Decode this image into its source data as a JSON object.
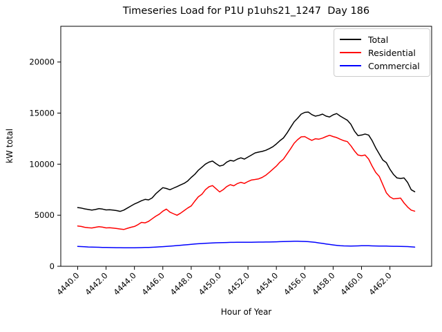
{
  "title": "Timeseries Load for P1U p1uhs21_1247  Day 186",
  "chart_data": {
    "type": "line",
    "title": "Timeseries Load for P1U p1uhs21_1247  Day 186",
    "xlabel": "Hour of Year",
    "ylabel": "kW total",
    "xlim": [
      4438.81,
      4464.94
    ],
    "ylim": [
      0,
      23500
    ],
    "grid": false,
    "legend_position": "upper right",
    "xticks": [
      4440,
      4442,
      4444,
      4446,
      4448,
      4450,
      4452,
      4454,
      4456,
      4458,
      4460,
      4462
    ],
    "xtick_labels": [
      "4440.0",
      "4442.0",
      "4444.0",
      "4446.0",
      "4448.0",
      "4450.0",
      "4452.0",
      "4454.0",
      "4456.0",
      "4458.0",
      "4460.0",
      "4462.0"
    ],
    "yticks": [
      0,
      5000,
      10000,
      15000,
      20000
    ],
    "ytick_labels": [
      "0",
      "5000",
      "10000",
      "15000",
      "20000"
    ],
    "x_start": 4440.0,
    "x_step": 0.25,
    "series": [
      {
        "name": "Total",
        "color": "#000000",
        "values": [
          5750,
          5700,
          5620,
          5560,
          5500,
          5560,
          5650,
          5600,
          5520,
          5540,
          5500,
          5450,
          5380,
          5500,
          5700,
          5900,
          6100,
          6250,
          6420,
          6550,
          6500,
          6700,
          7100,
          7400,
          7700,
          7620,
          7500,
          7650,
          7800,
          7970,
          8120,
          8350,
          8700,
          9000,
          9400,
          9700,
          10000,
          10200,
          10300,
          10050,
          9820,
          9900,
          10200,
          10370,
          10300,
          10500,
          10620,
          10500,
          10700,
          10900,
          11100,
          11180,
          11250,
          11360,
          11520,
          11700,
          11980,
          12300,
          12560,
          13050,
          13600,
          14150,
          14500,
          14900,
          15070,
          15100,
          14850,
          14700,
          14780,
          14900,
          14700,
          14620,
          14830,
          14950,
          14700,
          14500,
          14300,
          13900,
          13250,
          12800,
          12850,
          12950,
          12850,
          12300,
          11600,
          11000,
          10400,
          10150,
          9500,
          9000,
          8650,
          8600,
          8650,
          8200,
          7500,
          7300
        ]
      },
      {
        "name": "Residential",
        "color": "#ff0000",
        "values": [
          3950,
          3900,
          3820,
          3780,
          3750,
          3820,
          3880,
          3830,
          3760,
          3780,
          3740,
          3700,
          3650,
          3600,
          3720,
          3820,
          3900,
          4080,
          4300,
          4250,
          4400,
          4650,
          4900,
          5100,
          5400,
          5600,
          5300,
          5150,
          5000,
          5200,
          5450,
          5700,
          5910,
          6370,
          6800,
          7050,
          7500,
          7790,
          7900,
          7600,
          7280,
          7500,
          7800,
          7990,
          7880,
          8100,
          8220,
          8110,
          8300,
          8450,
          8500,
          8560,
          8700,
          8910,
          9200,
          9500,
          9810,
          10200,
          10490,
          11000,
          11500,
          12050,
          12400,
          12670,
          12700,
          12500,
          12330,
          12490,
          12450,
          12550,
          12700,
          12830,
          12700,
          12600,
          12440,
          12300,
          12210,
          11800,
          11300,
          10900,
          10830,
          10900,
          10500,
          9800,
          9200,
          8800,
          8000,
          7200,
          6800,
          6600,
          6640,
          6680,
          6200,
          5800,
          5500,
          5400
        ]
      },
      {
        "name": "Commercial",
        "color": "#0000ff",
        "values": [
          1950,
          1930,
          1910,
          1890,
          1880,
          1870,
          1860,
          1850,
          1840,
          1835,
          1830,
          1825,
          1820,
          1815,
          1810,
          1810,
          1815,
          1820,
          1830,
          1840,
          1850,
          1865,
          1880,
          1900,
          1920,
          1945,
          1970,
          2000,
          2030,
          2060,
          2090,
          2120,
          2150,
          2180,
          2210,
          2230,
          2250,
          2270,
          2290,
          2300,
          2310,
          2320,
          2330,
          2340,
          2345,
          2350,
          2350,
          2355,
          2360,
          2360,
          2365,
          2370,
          2370,
          2375,
          2380,
          2390,
          2400,
          2410,
          2420,
          2430,
          2440,
          2450,
          2450,
          2440,
          2430,
          2410,
          2380,
          2340,
          2290,
          2240,
          2190,
          2140,
          2090,
          2050,
          2020,
          2000,
          1990,
          1985,
          1990,
          2000,
          2010,
          2020,
          2010,
          2000,
          1990,
          1980,
          1985,
          1975,
          1965,
          1955,
          1960,
          1950,
          1940,
          1930,
          1900,
          1875
        ]
      }
    ]
  }
}
